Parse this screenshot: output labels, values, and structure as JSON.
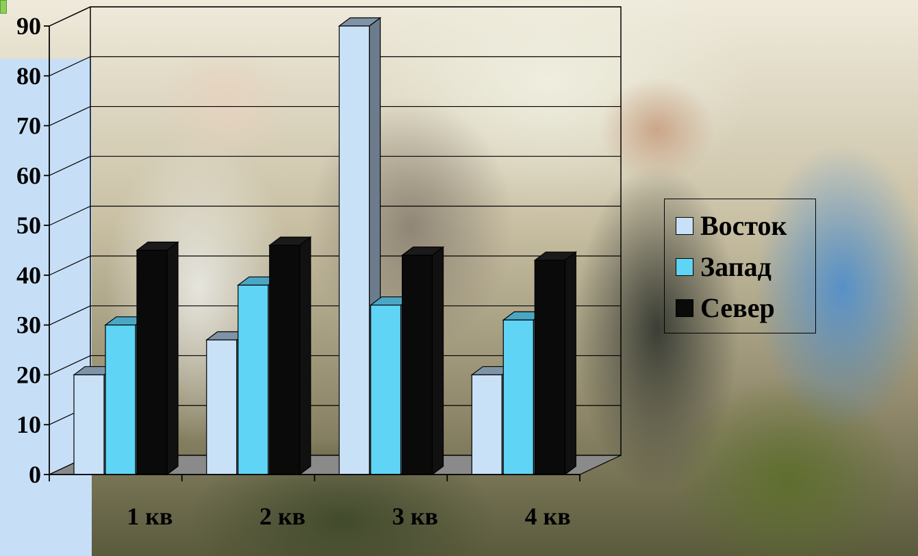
{
  "colors": {
    "east": "#c9e1f7",
    "west": "#5fd4f5",
    "north": "#0a0a0a",
    "band": "#c7dff6",
    "corner_tab": "#8ecf5a"
  },
  "chart_data": {
    "type": "bar",
    "categories": [
      "1 кв",
      "2 кв",
      "3 кв",
      "4 кв"
    ],
    "series": [
      {
        "name": "Восток",
        "values": [
          20,
          27,
          90,
          20
        ]
      },
      {
        "name": "Запад",
        "values": [
          30,
          38,
          34,
          31
        ]
      },
      {
        "name": "Север",
        "values": [
          45,
          46,
          44,
          43
        ]
      }
    ],
    "y_ticks": [
      "0",
      "10",
      "20",
      "30",
      "40",
      "50",
      "60",
      "70",
      "80",
      "90"
    ],
    "ylim": [
      0,
      90
    ],
    "grid": true,
    "style": "3d-clustered-column",
    "legend_position": "right"
  }
}
